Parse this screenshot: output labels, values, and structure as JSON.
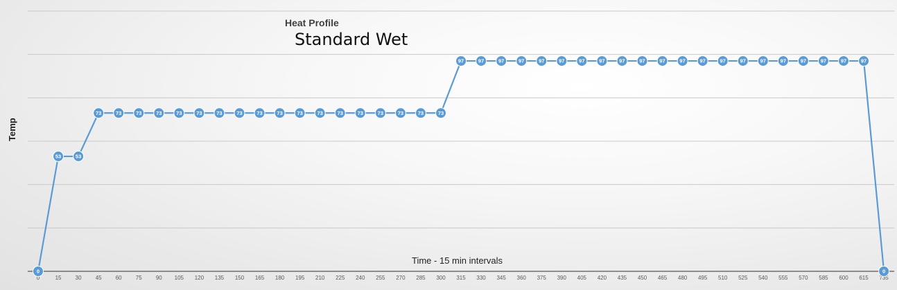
{
  "chart_data": {
    "type": "line",
    "caption": "Heat Profile",
    "title": "Standard Wet",
    "xlabel": "Time - 15 min intervals",
    "ylabel": "Temp",
    "x": [
      0,
      15,
      30,
      45,
      60,
      75,
      90,
      105,
      120,
      135,
      150,
      165,
      180,
      195,
      210,
      225,
      240,
      255,
      270,
      285,
      300,
      315,
      330,
      345,
      360,
      375,
      390,
      405,
      420,
      435,
      450,
      465,
      480,
      495,
      510,
      525,
      540,
      555,
      570,
      585,
      600,
      615,
      735
    ],
    "series": [
      {
        "values": [
          0,
          53,
          53,
          73,
          73,
          73,
          73,
          73,
          73,
          73,
          73,
          73,
          73,
          73,
          73,
          73,
          73,
          73,
          73,
          73,
          73,
          97,
          97,
          97,
          97,
          97,
          97,
          97,
          97,
          97,
          97,
          97,
          97,
          97,
          97,
          97,
          97,
          97,
          97,
          97,
          97,
          97,
          0
        ]
      }
    ],
    "ylim": [
      0,
      120
    ],
    "y_gridlines": 6,
    "grid": true,
    "data_labels": true,
    "colors": {
      "line": "#5b9bd5",
      "marker": "#5b9bd5",
      "marker_text": "#ffffff",
      "grid": "#c9c9c9",
      "axis": "#6e6e6e",
      "tick_text": "#595959"
    }
  }
}
